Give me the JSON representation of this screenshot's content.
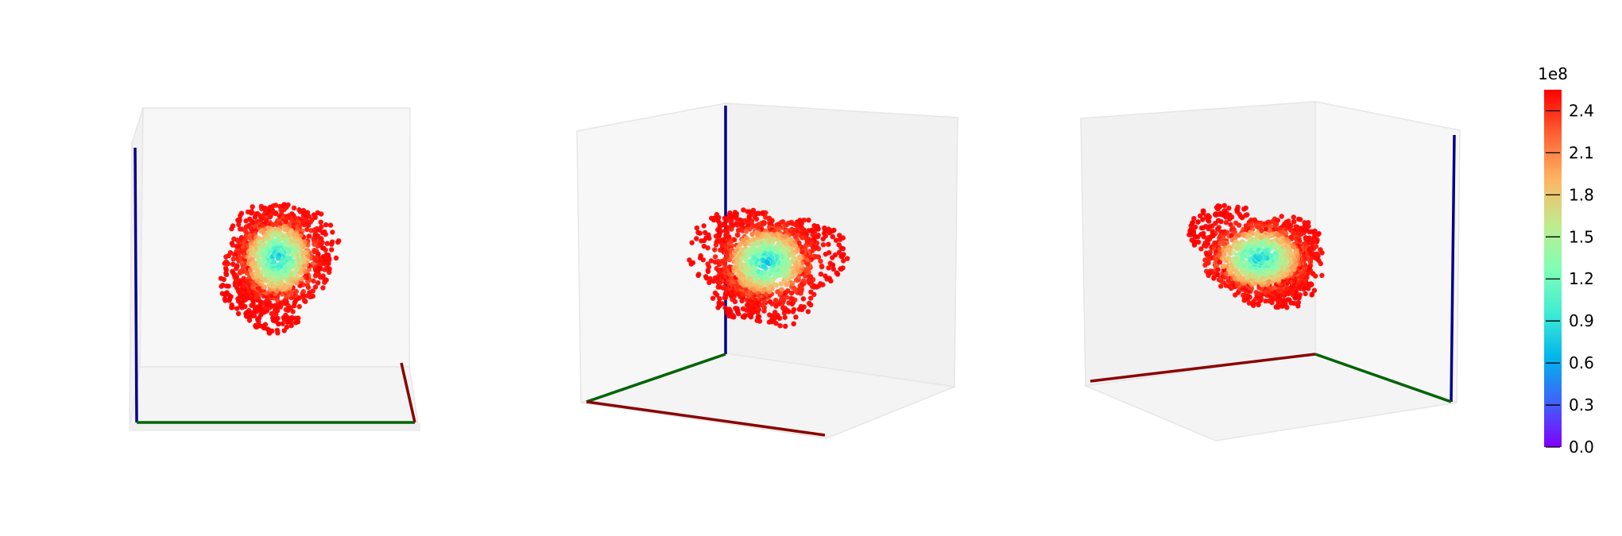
{
  "chart_data": {
    "type": "scatter",
    "title": "",
    "panels": [
      {
        "view": "front",
        "axes": [
          "x",
          "y",
          "z"
        ]
      },
      {
        "view": "oblique-left",
        "axes": [
          "x",
          "y",
          "z"
        ]
      },
      {
        "view": "oblique-right",
        "axes": [
          "x",
          "y",
          "z"
        ]
      }
    ],
    "axis_colors": {
      "x": "#8b0000",
      "y": "#006400",
      "z": "#00008b"
    },
    "pane_colors": {
      "light": "#f7f7f7",
      "mid": "#f1f1f1",
      "floor": "#f4f4f4",
      "edge": "#e6e6e6"
    },
    "grid": false,
    "tick_labels_shown": false,
    "colormap": "rainbow",
    "colorbar": {
      "offset_label": "1e8",
      "ticks": [
        0.0,
        0.3,
        0.6,
        0.9,
        1.2,
        1.5,
        1.8,
        2.1,
        2.4
      ],
      "tick_labels": [
        "0.0",
        "0.3",
        "0.6",
        "0.9",
        "1.2",
        "1.5",
        "1.8",
        "2.1",
        "2.4"
      ],
      "vmin": 0.0,
      "vmax": 2.55,
      "colors": [
        "#8000ff",
        "#4062fa",
        "#00b5eb",
        "#40ecd4",
        "#80ffb4",
        "#c0eb8d",
        "#ffb462",
        "#ff6232",
        "#ff0000"
      ]
    },
    "point_cloud": {
      "value_range": [
        0.5,
        2.55
      ],
      "dominant_value": 2.35
    }
  }
}
